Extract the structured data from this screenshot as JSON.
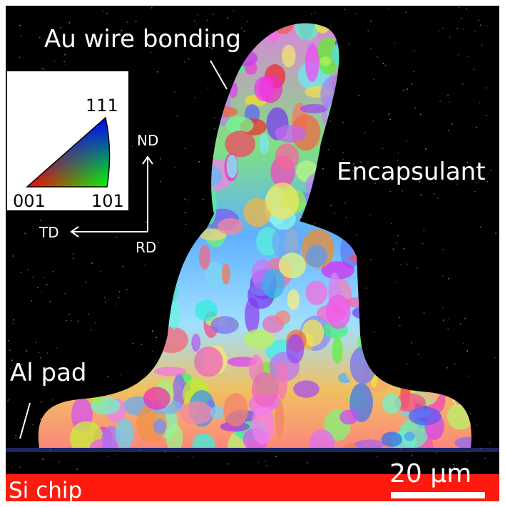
{
  "labels": {
    "wire": "Au wire bonding",
    "encapsulant": "Encapsulant",
    "pad": "Al pad",
    "chip": "Si chip",
    "scale": "20 μm"
  },
  "legend": {
    "top": "111",
    "left": "001",
    "right": "101"
  },
  "axes": {
    "nd": "ND",
    "td": "TD",
    "rd": "RD"
  }
}
